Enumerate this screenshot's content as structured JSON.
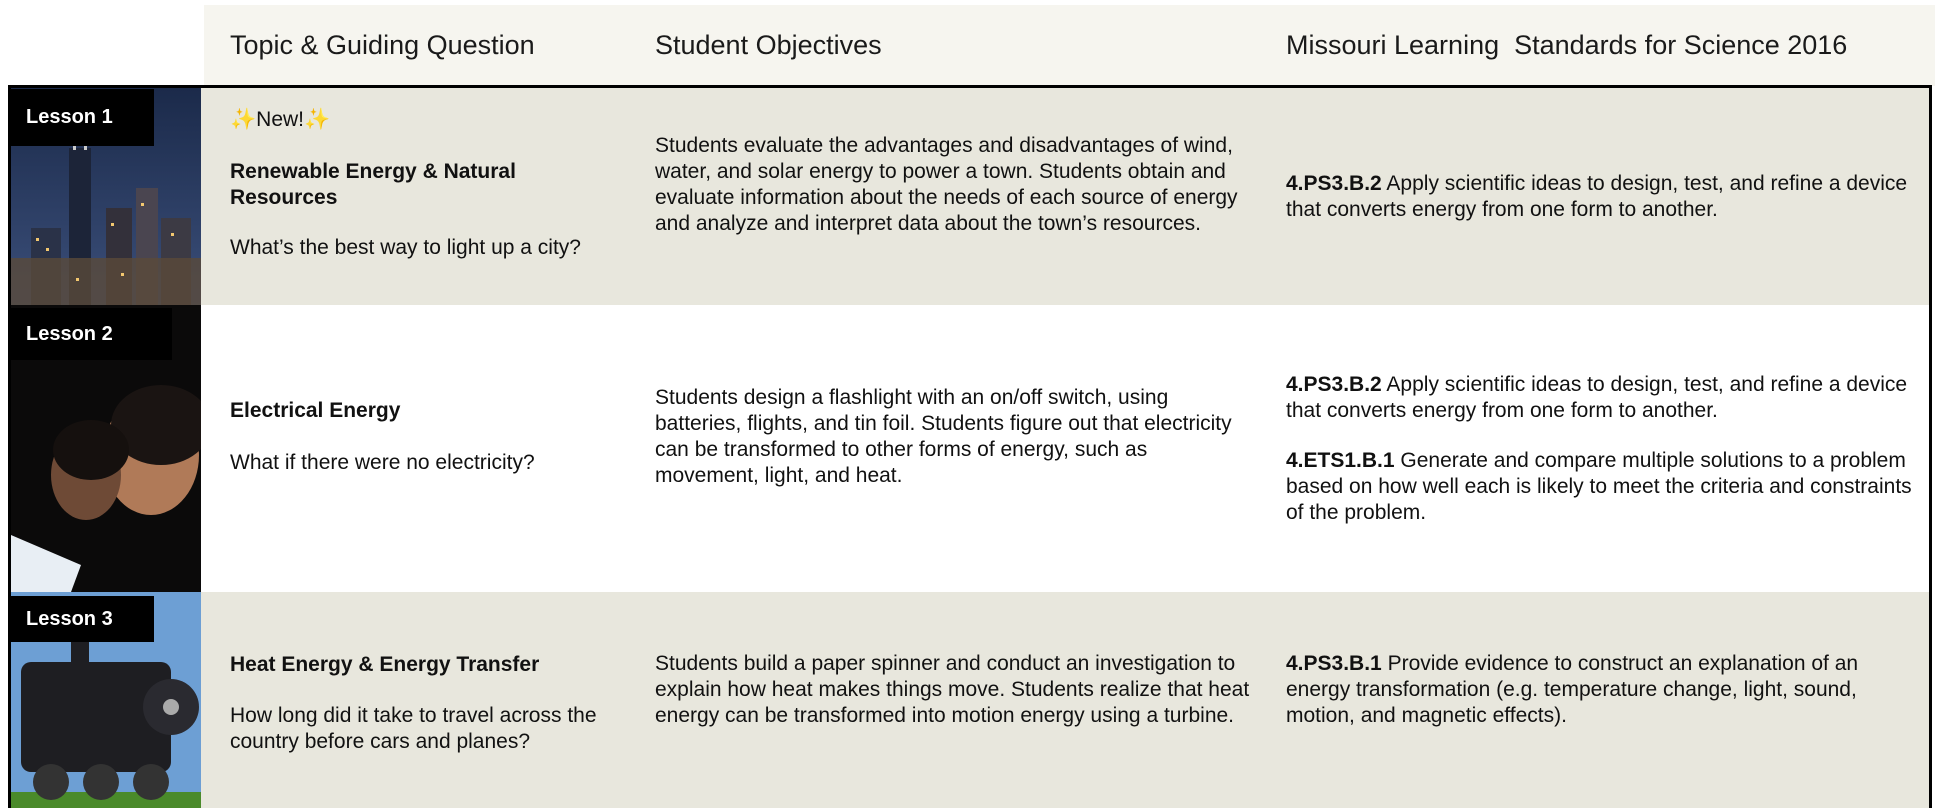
{
  "header": {
    "columns": [
      "Topic & Guiding Question",
      "Student Objectives",
      "Missouri Learning  Standards for Science 2016"
    ]
  },
  "lessons": [
    {
      "label": "Lesson 1",
      "badge": "✨New!✨",
      "title": "Renewable Energy & Natural Resources",
      "question": "What’s the best way to light up a city?",
      "objectives": "Students evaluate the advantages and disadvantages of wind, water, and solar energy to power a town. Students obtain and evaluate information about the needs of each source of energy and analyze and interpret data about the town’s resources.",
      "standards": [
        {
          "code": "4.PS3.B.2",
          "text": "Apply scientific ideas to design, test, and refine a device that converts energy from one form to another."
        }
      ]
    },
    {
      "label": "Lesson 2",
      "title": "Electrical Energy",
      "question": "What if there were no electricity?",
      "objectives": "Students design a flashlight with an on/off switch, using batteries, flights, and tin foil. Students figure out that electricity can be transformed to other forms of energy, such as movement, light, and heat.",
      "standards": [
        {
          "code": "4.PS3.B.2",
          "text": "Apply scientific ideas to design, test, and refine a device that converts energy from one form to another."
        },
        {
          "code": "4.ETS1.B.1",
          "text": "Generate and compare multiple solutions to a problem based on how well each is likely to meet the criteria and constraints of the problem."
        }
      ]
    },
    {
      "label": "Lesson 3",
      "title": "Heat Energy & Energy Transfer",
      "question": "How long did it take to travel across the country before cars and planes?",
      "objectives": "Students build a paper spinner and conduct an investigation to explain how heat makes things move. Students realize that heat energy can be transformed into motion energy using a turbine.",
      "standards": [
        {
          "code": "4.PS3.B.1",
          "text": "Provide evidence to construct an explanation of an energy transformation (e.g. temperature change, light, sound, motion, and magnetic effects)."
        }
      ]
    }
  ]
}
